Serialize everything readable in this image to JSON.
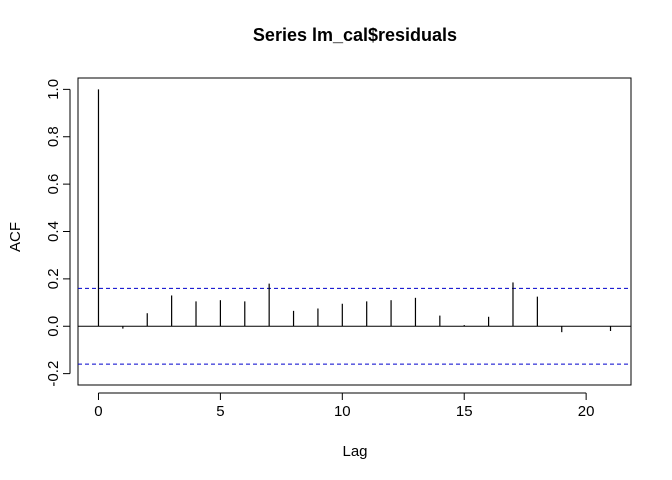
{
  "chart_data": {
    "type": "bar",
    "title": "Series  lm_cal$residuals",
    "xlabel": "Lag",
    "ylabel": "ACF",
    "xlim": [
      -0.84,
      21.84
    ],
    "ylim": [
      -0.2,
      1.0
    ],
    "x_ticks": [
      0,
      5,
      10,
      15,
      20
    ],
    "y_ticks": [
      -0.2,
      0.0,
      0.2,
      0.4,
      0.6,
      0.8,
      1.0
    ],
    "x_tick_labels": [
      "0",
      "5",
      "10",
      "15",
      "20"
    ],
    "y_tick_labels": [
      "-0.2",
      "0.0",
      "0.2",
      "0.4",
      "0.6",
      "0.8",
      "1.0"
    ],
    "lags": [
      0,
      1,
      2,
      3,
      4,
      5,
      6,
      7,
      8,
      9,
      10,
      11,
      12,
      13,
      14,
      15,
      16,
      17,
      18,
      19,
      20,
      21
    ],
    "acf": [
      1.0,
      -0.01,
      0.055,
      0.13,
      0.105,
      0.11,
      0.105,
      0.18,
      0.065,
      0.075,
      0.095,
      0.105,
      0.11,
      0.12,
      0.045,
      0.005,
      0.04,
      0.185,
      0.125,
      -0.025,
      0.0,
      -0.02
    ],
    "confidence_bound": 0.16,
    "confidence_color": "#0000CC",
    "line_color": "#000000",
    "grid": false
  }
}
